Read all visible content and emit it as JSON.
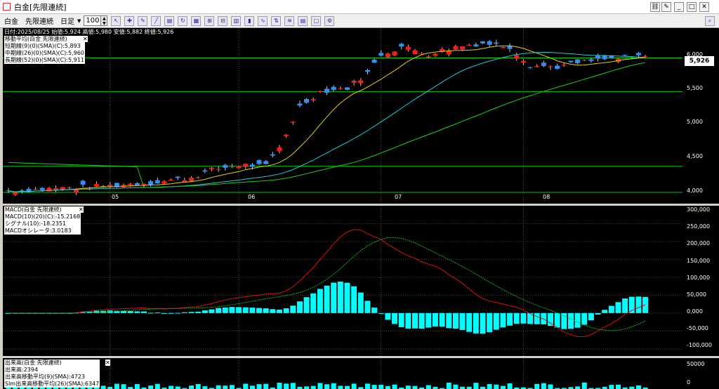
{
  "window": {
    "title": "白金[先限連続]",
    "controls": [
      "_",
      "□",
      "✕"
    ]
  },
  "toolbar": {
    "item": "白金",
    "contract": "先限連続",
    "period": "日足",
    "count": "100"
  },
  "info_line": "日付:2025/08/25 始値:5,924 高値:5,980 安値:5,882 終値:5,926",
  "price_panel": {
    "legend_title": "移動平均(白金 先限連続)",
    "ma_short": "短期線(9)(0)(SMA)(C):5,893",
    "ma_mid": "中期線(26)(0)(SMA)(C):5,960",
    "ma_long": "長期線(52)(0)(SMA)(C):5,911",
    "last_price": "5,926",
    "y_ticks": [
      "6,000",
      "5,500",
      "5,000",
      "4,500",
      "4,000"
    ],
    "x_ticks": [
      "05",
      "06",
      "07",
      "08"
    ]
  },
  "macd_panel": {
    "legend_title": "MACD(白金 先限連続)",
    "macd": "MACD(10)(20)(C):-15.2168",
    "signal": "シグナル(10):-18.2351",
    "osc": "MACDオシレータ:3.0183",
    "y_ticks": [
      "300,000",
      "250,000",
      "200,000",
      "150,000",
      "100,000",
      "50,000",
      "0,000",
      "-50,000",
      "-100,000"
    ]
  },
  "volume_panel": {
    "legend_title": "出来高(白金 先限連続)",
    "vol": "出来高:2394",
    "vol_ma9": "出来高移動平均(9)(SMA):4723",
    "vol_ma26": "Slm出来高移動平均(26)(SMA):6347",
    "y_ticks": [
      "50000",
      "0"
    ]
  },
  "colors": {
    "up": "#ff1a1a",
    "down": "#2f8fff",
    "ma_short": "#e6d200",
    "ma_mid": "#20c8d8",
    "ma_long": "#22cc22",
    "hline": "#00cc00",
    "osc": "#00ffff",
    "macd": "#dd1111",
    "signal": "#22aa22"
  },
  "chart_data": {
    "type": "candlestick",
    "price": {
      "ylim": [
        3950,
        6300
      ],
      "last": 5926,
      "hlines": [
        5900,
        5450,
        4450,
        4100
      ],
      "x_labels": [
        {
          "index": 15,
          "label": "05"
        },
        {
          "index": 34,
          "label": "06"
        },
        {
          "index": 55,
          "label": "07"
        },
        {
          "index": 76,
          "label": "08"
        }
      ]
    },
    "macd": {
      "ylim": [
        -120,
        300
      ],
      "zero": 0
    },
    "volume": {
      "ylim": [
        0,
        50000
      ]
    }
  }
}
